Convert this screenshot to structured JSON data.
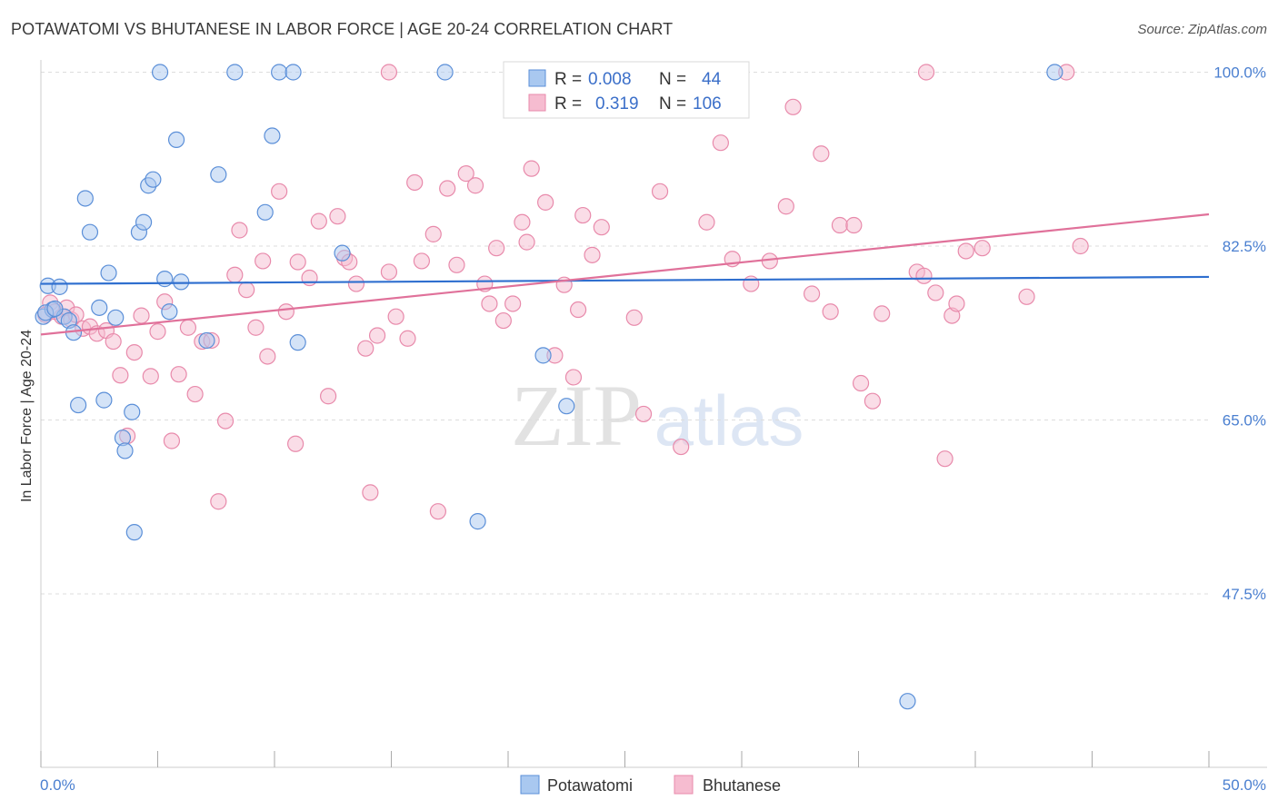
{
  "title": "POTAWATOMI VS BHUTANESE IN LABOR FORCE | AGE 20-24 CORRELATION CHART",
  "source": "Source: ZipAtlas.com",
  "watermark": {
    "zip": "ZIP",
    "atlas": "atlas"
  },
  "colors": {
    "blue_fill": "#a9c8f0",
    "blue_stroke": "#5b8fd8",
    "blue_line": "#2f6fcf",
    "pink_fill": "#f6bcd0",
    "pink_stroke": "#e88aab",
    "pink_line": "#e0719a",
    "tick_text": "#4a7fd0",
    "grid": "#dddddd"
  },
  "legend": {
    "rows": [
      {
        "r_label": "R =",
        "r_value": "0.008",
        "n_label": "N =",
        "n_value": "44"
      },
      {
        "r_label": "R =",
        "r_value": "0.319",
        "n_label": "N =",
        "n_value": "106"
      }
    ]
  },
  "chart_data": {
    "type": "scatter",
    "title": "POTAWATOMI VS BHUTANESE IN LABOR FORCE | AGE 20-24 CORRELATION CHART",
    "xlabel": "",
    "ylabel": "In Labor Force | Age 20-24",
    "xlim": [
      0,
      50
    ],
    "ylim": [
      33,
      102
    ],
    "x_tick_labels": [
      "0.0%",
      "50.0%"
    ],
    "y_ticks": [
      47.5,
      65.0,
      82.5,
      100.0
    ],
    "y_tick_labels": [
      "47.5%",
      "65.0%",
      "82.5%",
      "100.0%"
    ],
    "grid": true,
    "legend_placement": "bottom",
    "series": [
      {
        "name": "Potawatomi",
        "trend": [
          [
            0,
            78.7
          ],
          [
            50,
            79.4
          ]
        ],
        "points": [
          [
            0.1,
            75.4
          ],
          [
            0.3,
            78.5
          ],
          [
            0.5,
            76.1
          ],
          [
            0.8,
            78.4
          ],
          [
            1.0,
            75.4
          ],
          [
            1.2,
            75.0
          ],
          [
            1.4,
            73.8
          ],
          [
            1.6,
            66.5
          ],
          [
            1.9,
            87.3
          ],
          [
            2.1,
            83.9
          ],
          [
            2.5,
            76.3
          ],
          [
            2.7,
            67.0
          ],
          [
            2.9,
            79.8
          ],
          [
            3.2,
            75.3
          ],
          [
            3.5,
            63.2
          ],
          [
            3.6,
            61.9
          ],
          [
            3.9,
            65.8
          ],
          [
            4.0,
            53.7
          ],
          [
            4.2,
            83.9
          ],
          [
            4.4,
            84.9
          ],
          [
            4.6,
            88.6
          ],
          [
            4.8,
            89.2
          ],
          [
            5.1,
            100.0
          ],
          [
            5.3,
            79.2
          ],
          [
            5.5,
            75.9
          ],
          [
            5.8,
            93.2
          ],
          [
            6.0,
            78.9
          ],
          [
            7.1,
            73.0
          ],
          [
            7.6,
            89.7
          ],
          [
            8.3,
            100.0
          ],
          [
            9.6,
            85.9
          ],
          [
            9.9,
            93.6
          ],
          [
            10.2,
            100.0
          ],
          [
            10.8,
            100.0
          ],
          [
            11.0,
            72.8
          ],
          [
            12.9,
            81.8
          ],
          [
            17.3,
            100.0
          ],
          [
            18.7,
            54.8
          ],
          [
            21.5,
            71.5
          ],
          [
            22.5,
            66.4
          ],
          [
            37.1,
            36.7
          ],
          [
            43.4,
            100.0
          ],
          [
            0.2,
            75.8
          ],
          [
            0.6,
            76.2
          ]
        ]
      },
      {
        "name": "Bhutanese",
        "trend": [
          [
            0,
            73.6
          ],
          [
            50,
            85.7
          ]
        ],
        "points": [
          [
            0.2,
            75.6
          ],
          [
            0.4,
            76.8
          ],
          [
            0.6,
            75.9
          ],
          [
            0.9,
            75.4
          ],
          [
            1.1,
            76.3
          ],
          [
            1.3,
            75.1
          ],
          [
            1.5,
            75.6
          ],
          [
            1.8,
            74.2
          ],
          [
            2.1,
            74.4
          ],
          [
            2.4,
            73.7
          ],
          [
            2.8,
            74.0
          ],
          [
            3.1,
            72.9
          ],
          [
            3.4,
            69.5
          ],
          [
            3.7,
            63.4
          ],
          [
            4.0,
            71.8
          ],
          [
            4.3,
            75.5
          ],
          [
            4.7,
            69.4
          ],
          [
            5.0,
            73.9
          ],
          [
            5.3,
            76.9
          ],
          [
            5.6,
            62.9
          ],
          [
            5.9,
            69.6
          ],
          [
            6.3,
            74.3
          ],
          [
            6.6,
            67.6
          ],
          [
            6.9,
            72.9
          ],
          [
            7.3,
            73.0
          ],
          [
            7.6,
            56.8
          ],
          [
            7.9,
            64.9
          ],
          [
            8.3,
            79.6
          ],
          [
            8.5,
            84.1
          ],
          [
            8.8,
            78.1
          ],
          [
            9.2,
            74.3
          ],
          [
            9.5,
            81.0
          ],
          [
            9.7,
            71.4
          ],
          [
            10.2,
            88.0
          ],
          [
            10.5,
            75.9
          ],
          [
            10.9,
            62.6
          ],
          [
            11.0,
            80.9
          ],
          [
            11.5,
            79.3
          ],
          [
            11.9,
            85.0
          ],
          [
            12.3,
            67.4
          ],
          [
            12.7,
            85.5
          ],
          [
            13.0,
            81.3
          ],
          [
            13.2,
            80.9
          ],
          [
            13.5,
            78.7
          ],
          [
            13.9,
            72.2
          ],
          [
            14.1,
            57.7
          ],
          [
            14.4,
            73.5
          ],
          [
            14.9,
            79.9
          ],
          [
            15.2,
            75.4
          ],
          [
            15.7,
            73.2
          ],
          [
            16.0,
            88.9
          ],
          [
            16.3,
            81.0
          ],
          [
            16.8,
            83.7
          ],
          [
            17.0,
            55.8
          ],
          [
            17.4,
            88.3
          ],
          [
            17.8,
            80.6
          ],
          [
            18.2,
            89.8
          ],
          [
            18.6,
            88.6
          ],
          [
            19.0,
            78.7
          ],
          [
            19.2,
            76.7
          ],
          [
            19.5,
            82.3
          ],
          [
            19.8,
            75.0
          ],
          [
            20.2,
            76.7
          ],
          [
            20.6,
            84.9
          ],
          [
            20.8,
            82.9
          ],
          [
            21.0,
            90.3
          ],
          [
            21.6,
            86.9
          ],
          [
            22.0,
            71.5
          ],
          [
            22.4,
            78.6
          ],
          [
            22.8,
            69.3
          ],
          [
            23.0,
            76.1
          ],
          [
            23.2,
            85.6
          ],
          [
            23.6,
            81.6
          ],
          [
            24.0,
            84.4
          ],
          [
            25.4,
            75.3
          ],
          [
            25.8,
            65.6
          ],
          [
            26.5,
            88.0
          ],
          [
            27.4,
            62.3
          ],
          [
            28.5,
            84.9
          ],
          [
            29.1,
            92.9
          ],
          [
            29.6,
            81.2
          ],
          [
            30.4,
            78.7
          ],
          [
            31.2,
            81.0
          ],
          [
            31.9,
            86.5
          ],
          [
            32.2,
            96.5
          ],
          [
            33.0,
            77.7
          ],
          [
            33.4,
            91.8
          ],
          [
            33.8,
            75.9
          ],
          [
            34.2,
            84.6
          ],
          [
            34.8,
            84.6
          ],
          [
            35.1,
            68.7
          ],
          [
            35.6,
            66.9
          ],
          [
            36.0,
            75.7
          ],
          [
            37.5,
            79.9
          ],
          [
            37.8,
            79.5
          ],
          [
            38.3,
            77.8
          ],
          [
            38.7,
            61.1
          ],
          [
            39.0,
            75.5
          ],
          [
            39.2,
            76.7
          ],
          [
            39.6,
            82.0
          ],
          [
            40.3,
            82.3
          ],
          [
            42.2,
            77.4
          ],
          [
            43.9,
            100.0
          ],
          [
            44.5,
            82.5
          ],
          [
            37.9,
            100.0
          ],
          [
            14.9,
            100.0
          ]
        ]
      }
    ]
  },
  "bottom_legend": [
    {
      "label": "Potawatomi"
    },
    {
      "label": "Bhutanese"
    }
  ]
}
